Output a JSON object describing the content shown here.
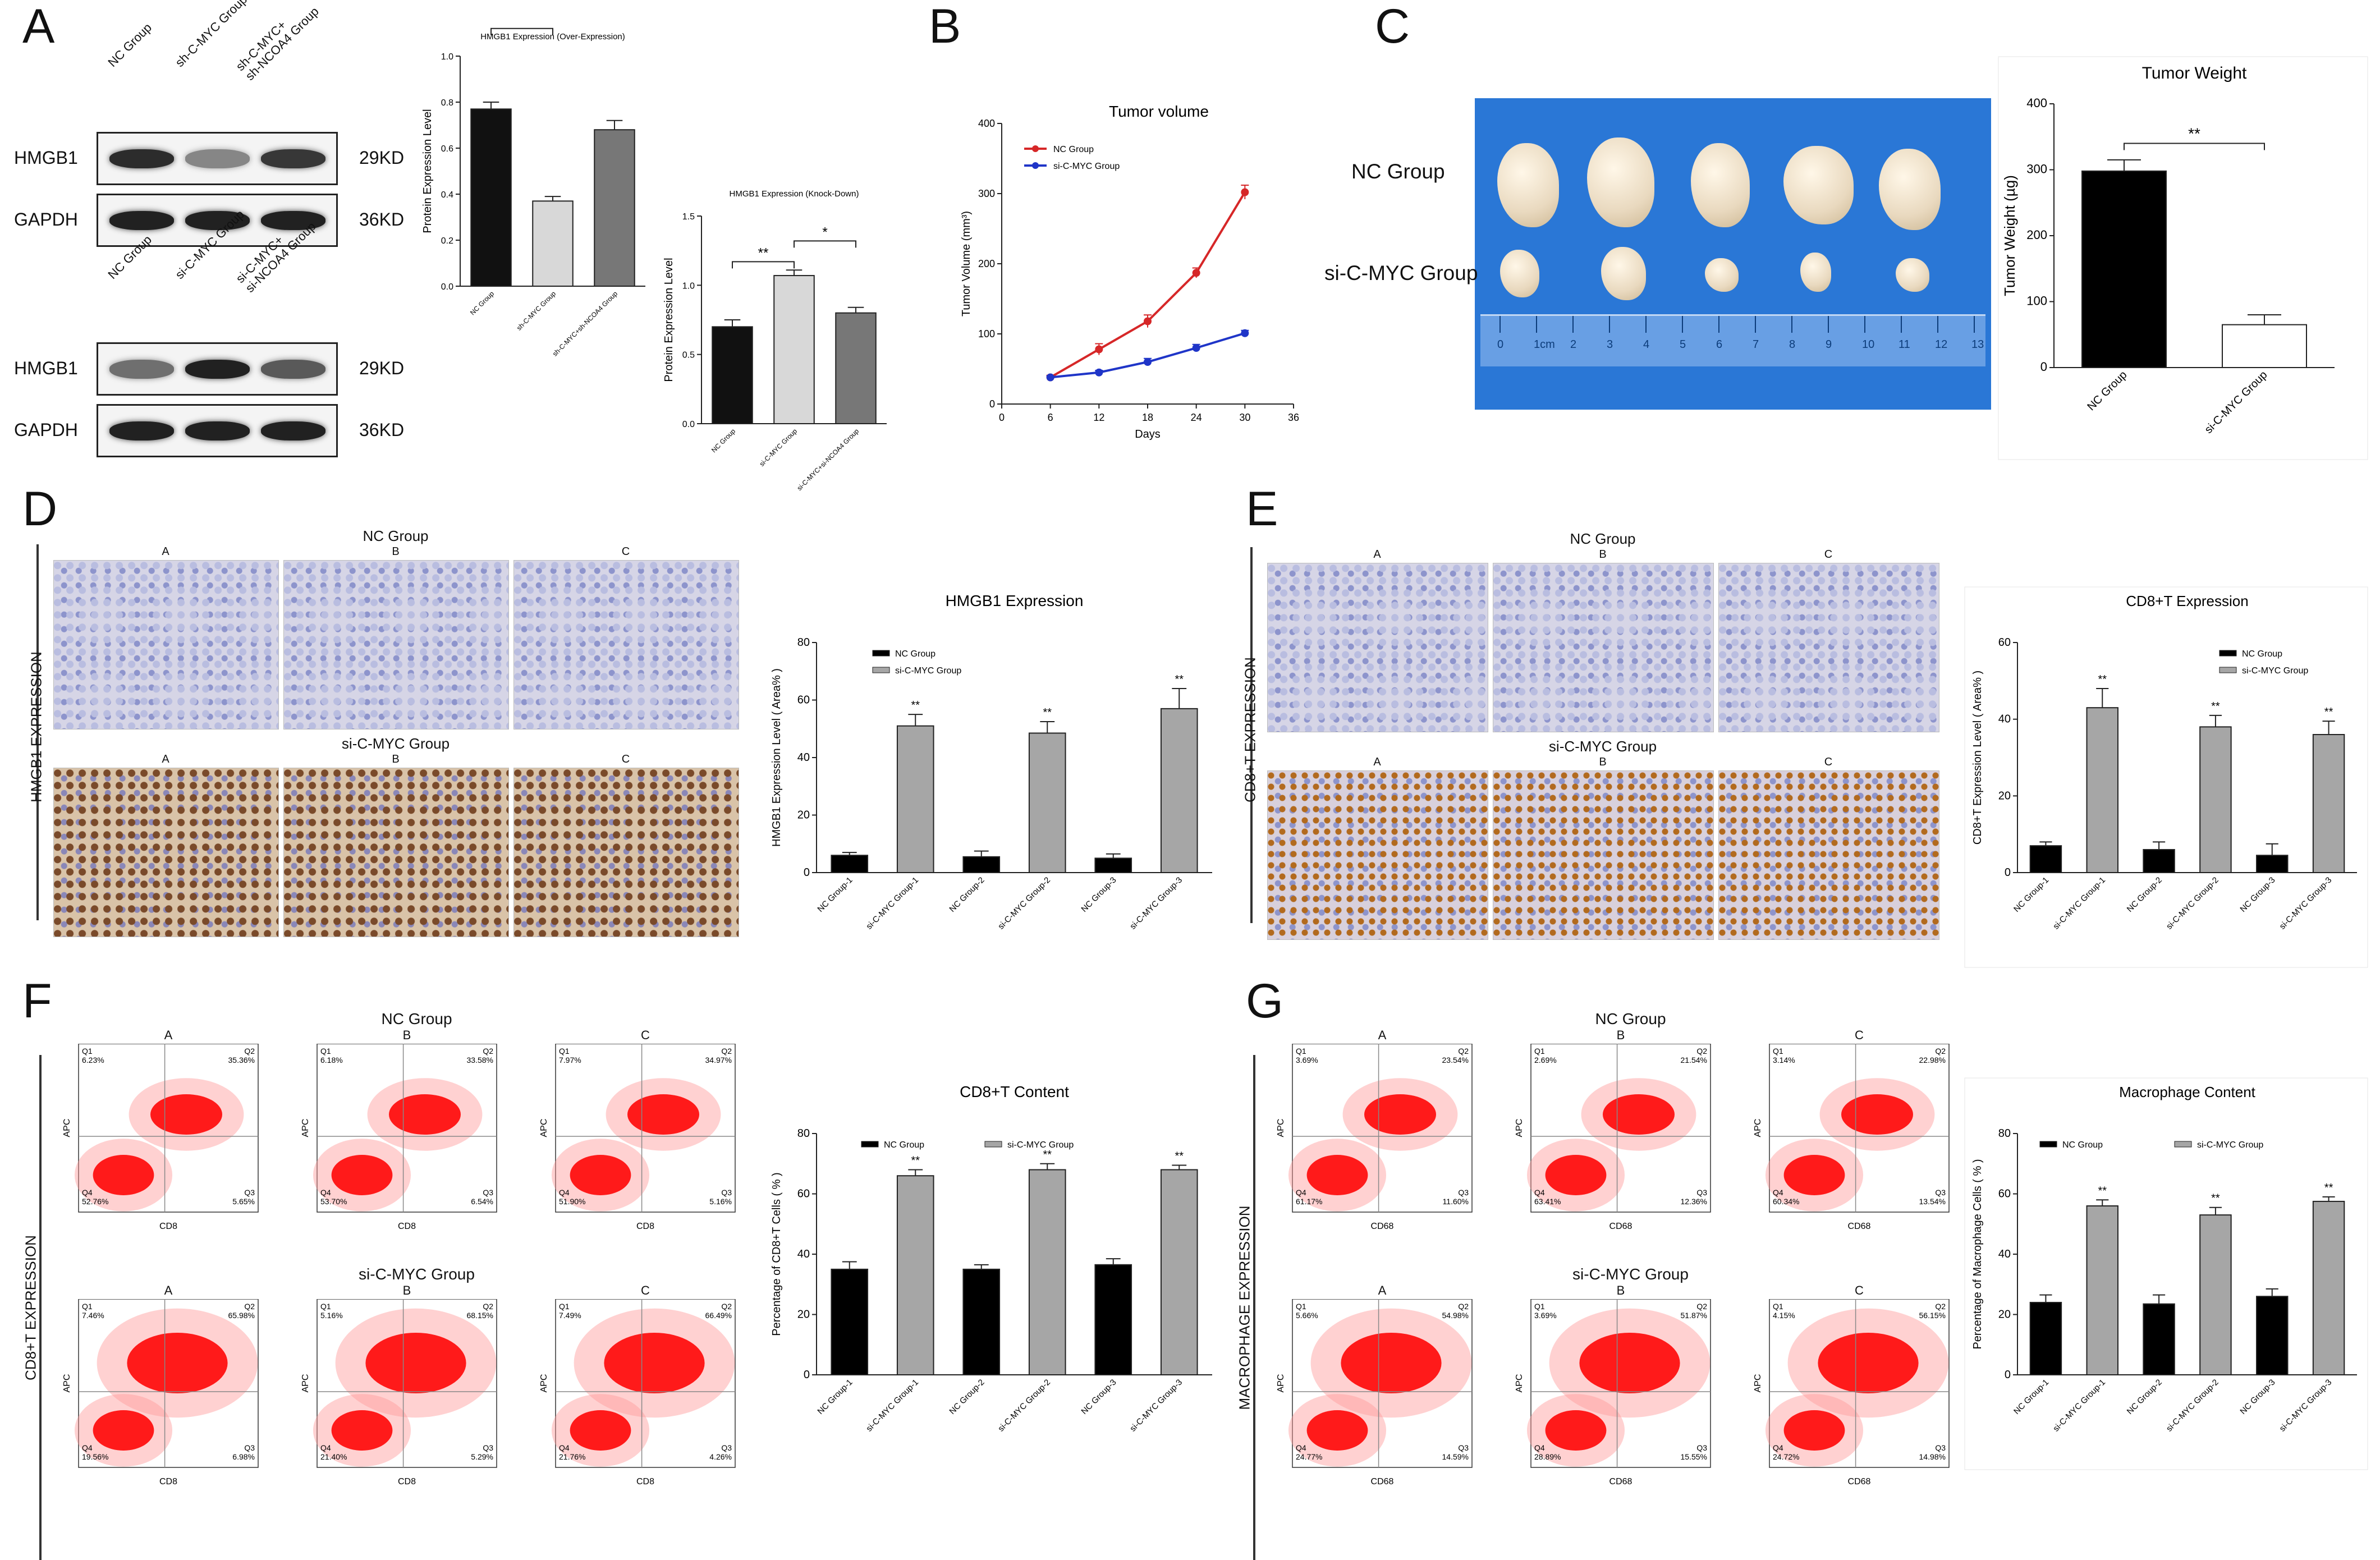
{
  "panels": {
    "A": "A",
    "B": "B",
    "C": "C",
    "D": "D",
    "E": "E",
    "F": "F",
    "G": "G"
  },
  "western_blot": {
    "top": {
      "lanes": [
        "NC Group",
        "sh-C-MYC Group",
        "sh-C-MYC+\nsh-NCOA4 Group"
      ],
      "rows": [
        {
          "protein": "HMGB1",
          "size": "29KD",
          "intensity": [
            0.85,
            0.45,
            0.8
          ]
        },
        {
          "protein": "GAPDH",
          "size": "36KD",
          "intensity": [
            0.9,
            0.9,
            0.9
          ]
        }
      ]
    },
    "bottom": {
      "lanes": [
        "NC Group",
        "si-C-MYC Group",
        "si-C-MYC+\nsi-NCOA4 Group"
      ],
      "rows": [
        {
          "protein": "HMGB1",
          "size": "29KD",
          "intensity": [
            0.55,
            0.9,
            0.65
          ]
        },
        {
          "protein": "GAPDH",
          "size": "36KD",
          "intensity": [
            0.9,
            0.9,
            0.9
          ]
        }
      ]
    }
  },
  "tumor_photo": {
    "row_labels": [
      "NC Group",
      "si-C-MYC Group"
    ],
    "ruler": [
      "0",
      "1cm",
      "2",
      "3",
      "4",
      "5",
      "6",
      "7",
      "8",
      "9",
      "10",
      "11",
      "12",
      "13"
    ]
  },
  "micro_panels": {
    "D": {
      "side_label": "HMGB1 EXPRESSION",
      "top_group": "NC Group",
      "bottom_group": "si-C-MYC Group",
      "columns": [
        "A",
        "B",
        "C"
      ]
    },
    "E": {
      "side_label": "CD8+T EXPRESSION",
      "top_group": "NC Group",
      "bottom_group": "si-C-MYC Group",
      "columns": [
        "A",
        "B",
        "C"
      ]
    }
  },
  "facs_panels": {
    "F": {
      "side_label": "CD8+T EXPRESSION",
      "top_group": "NC Group",
      "bottom_group": "si-C-MYC Group",
      "columns": [
        "A",
        "B",
        "C"
      ],
      "xlabel": "CD8",
      "ylabel": "APC",
      "quadrants": [
        [
          [
            "Q1",
            "6.23%"
          ],
          [
            "Q2",
            "35.36%"
          ],
          [
            "Q4",
            "52.76%"
          ],
          [
            "Q3",
            "5.65%"
          ]
        ],
        [
          [
            "Q1",
            "6.18%"
          ],
          [
            "Q2",
            "33.58%"
          ],
          [
            "Q4",
            "53.70%"
          ],
          [
            "Q3",
            "6.54%"
          ]
        ],
        [
          [
            "Q1",
            "7.97%"
          ],
          [
            "Q2",
            "34.97%"
          ],
          [
            "Q4",
            "51.90%"
          ],
          [
            "Q3",
            "5.16%"
          ]
        ],
        [
          [
            "Q1",
            "7.46%"
          ],
          [
            "Q2",
            "65.98%"
          ],
          [
            "Q4",
            "19.56%"
          ],
          [
            "Q3",
            "6.98%"
          ]
        ],
        [
          [
            "Q1",
            "5.16%"
          ],
          [
            "Q2",
            "68.15%"
          ],
          [
            "Q4",
            "21.40%"
          ],
          [
            "Q3",
            "5.29%"
          ]
        ],
        [
          [
            "Q1",
            "7.49%"
          ],
          [
            "Q2",
            "66.49%"
          ],
          [
            "Q4",
            "21.76%"
          ],
          [
            "Q3",
            "4.26%"
          ]
        ]
      ]
    },
    "G": {
      "side_label": "MACROPHAGE EXPRESSION",
      "top_group": "NC Group",
      "bottom_group": "si-C-MYC Group",
      "columns": [
        "A",
        "B",
        "C"
      ],
      "xlabel": "CD68",
      "ylabel": "APC",
      "quadrants": [
        [
          [
            "Q1",
            "3.69%"
          ],
          [
            "Q2",
            "23.54%"
          ],
          [
            "Q4",
            "61.17%"
          ],
          [
            "Q3",
            "11.60%"
          ]
        ],
        [
          [
            "Q1",
            "2.69%"
          ],
          [
            "Q2",
            "21.54%"
          ],
          [
            "Q4",
            "63.41%"
          ],
          [
            "Q3",
            "12.36%"
          ]
        ],
        [
          [
            "Q1",
            "3.14%"
          ],
          [
            "Q2",
            "22.98%"
          ],
          [
            "Q4",
            "60.34%"
          ],
          [
            "Q3",
            "13.54%"
          ]
        ],
        [
          [
            "Q1",
            "5.66%"
          ],
          [
            "Q2",
            "54.98%"
          ],
          [
            "Q4",
            "24.77%"
          ],
          [
            "Q3",
            "14.59%"
          ]
        ],
        [
          [
            "Q1",
            "3.69%"
          ],
          [
            "Q2",
            "51.87%"
          ],
          [
            "Q4",
            "28.89%"
          ],
          [
            "Q3",
            "15.55%"
          ]
        ],
        [
          [
            "Q1",
            "4.15%"
          ],
          [
            "Q2",
            "56.15%"
          ],
          [
            "Q4",
            "24.72%"
          ],
          [
            "Q3",
            "14.98%"
          ]
        ]
      ]
    }
  },
  "chart_data": [
    {
      "id": "A1",
      "type": "bar",
      "title": "HMGB1 Expression (Over-Expression)",
      "ylabel": "Protein Expression Level",
      "categories": [
        "NC Group",
        "sh-C-MYC Group",
        "sh-C-MYC+sh-NCOA4 Group"
      ],
      "values": [
        0.77,
        0.37,
        0.68
      ],
      "errors": [
        0.03,
        0.02,
        0.04
      ],
      "colors": [
        "#111111",
        "#d8d8d8",
        "#777777"
      ],
      "ylim": [
        0,
        1.0
      ],
      "yticks": [
        "0.0",
        "0.2",
        "0.4",
        "0.6",
        "0.8",
        "1.0"
      ],
      "sig": [
        {
          "from": 0,
          "to": 1,
          "label": "**"
        },
        {
          "from": 1,
          "to": 2,
          "label": "**"
        }
      ]
    },
    {
      "id": "A2",
      "type": "bar",
      "title": "HMGB1 Expression (Knock-Down)",
      "ylabel": "Protein Expression Level",
      "categories": [
        "NC Group",
        "si-C-MYC Group",
        "si-C-MYC+si-NCOA4 Group"
      ],
      "values": [
        0.7,
        1.07,
        0.8
      ],
      "errors": [
        0.05,
        0.04,
        0.04
      ],
      "colors": [
        "#111111",
        "#d8d8d8",
        "#777777"
      ],
      "ylim": [
        0,
        1.5
      ],
      "yticks": [
        "0.0",
        "0.5",
        "1.0",
        "1.5"
      ],
      "sig": [
        {
          "from": 0,
          "to": 1,
          "label": "**"
        },
        {
          "from": 1,
          "to": 2,
          "label": "*"
        }
      ]
    },
    {
      "id": "B",
      "type": "line",
      "title": "Tumor volume",
      "xlabel": "Days",
      "ylabel": "Tumor Volume (mm³)",
      "x": [
        6,
        12,
        18,
        24,
        30
      ],
      "xlim": [
        0,
        36
      ],
      "xticks": [
        "0",
        "6",
        "12",
        "18",
        "24",
        "30",
        "36"
      ],
      "ylim": [
        0,
        400
      ],
      "yticks": [
        "0",
        "100",
        "200",
        "300",
        "400"
      ],
      "series": [
        {
          "name": "NC Group",
          "color": "#d62728",
          "values": [
            38,
            78,
            118,
            187,
            302
          ],
          "errors": [
            3,
            8,
            9,
            7,
            10
          ]
        },
        {
          "name": "si-C-MYC Group",
          "color": "#1f35c8",
          "values": [
            38,
            45,
            60,
            80,
            101
          ],
          "errors": [
            2,
            3,
            5,
            5,
            4
          ]
        }
      ]
    },
    {
      "id": "C",
      "type": "bar",
      "title": "Tumor Weight",
      "ylabel": "Tumor Weight (µg)",
      "categories": [
        "NC Group",
        "si-C-MYC Group"
      ],
      "values": [
        298,
        65
      ],
      "errors": [
        17,
        15
      ],
      "colors": [
        "#000000",
        "#ffffff"
      ],
      "ylim": [
        0,
        400
      ],
      "yticks": [
        "0",
        "100",
        "200",
        "300",
        "400"
      ],
      "sig": [
        {
          "from": 0,
          "to": 1,
          "label": "**"
        }
      ]
    },
    {
      "id": "D",
      "type": "bar",
      "title": "HMGB1 Expression",
      "ylabel": "HMGB1 Expression Level ( Area% )",
      "categories": [
        "NC Group-1",
        "si-C-MYC Group-1",
        "NC Group-2",
        "si-C-MYC Group-2",
        "NC Group-3",
        "si-C-MYC Group-3"
      ],
      "values": [
        6,
        51,
        5.5,
        48.5,
        5,
        57
      ],
      "errors": [
        1,
        4,
        2,
        4,
        1.5,
        7
      ],
      "colors": [
        "#000000",
        "#a6a6a6",
        "#000000",
        "#a6a6a6",
        "#000000",
        "#a6a6a6"
      ],
      "stars": [
        "",
        "**",
        "",
        "**",
        "",
        "**"
      ],
      "ylim": [
        0,
        80
      ],
      "yticks": [
        "0",
        "20",
        "40",
        "60",
        "80"
      ],
      "series": [
        {
          "name": "NC Group",
          "color": "#000000"
        },
        {
          "name": "si-C-MYC Group",
          "color": "#a6a6a6"
        }
      ]
    },
    {
      "id": "E",
      "type": "bar",
      "title": "CD8+T Expression",
      "ylabel": "CD8+T Expression Level ( Area% )",
      "categories": [
        "NC Group-1",
        "si-C-MYC Group-1",
        "NC Group-2",
        "si-C-MYC Group-2",
        "NC Group-3",
        "si-C-MYC Group-3"
      ],
      "values": [
        7,
        43,
        6,
        38,
        4.5,
        36
      ],
      "errors": [
        1,
        5,
        2,
        3,
        3,
        3.5
      ],
      "colors": [
        "#000000",
        "#a6a6a6",
        "#000000",
        "#a6a6a6",
        "#000000",
        "#a6a6a6"
      ],
      "stars": [
        "",
        "**",
        "",
        "**",
        "",
        "**"
      ],
      "ylim": [
        0,
        60
      ],
      "yticks": [
        "0",
        "20",
        "40",
        "60"
      ],
      "series": [
        {
          "name": "NC Group",
          "color": "#000000"
        },
        {
          "name": "si-C-MYC Group",
          "color": "#a6a6a6"
        }
      ]
    },
    {
      "id": "F",
      "type": "bar",
      "title": "CD8+T Content",
      "ylabel": "Percentage of CD8+T Cells ( % )",
      "categories": [
        "NC Group-1",
        "si-C-MYC Group-1",
        "NC Group-2",
        "si-C-MYC Group-2",
        "NC Group-3",
        "si-C-MYC Group-3"
      ],
      "values": [
        35,
        66,
        35,
        68,
        36.5,
        68
      ],
      "errors": [
        2.5,
        2,
        1.5,
        2,
        2,
        1.5
      ],
      "colors": [
        "#000000",
        "#a6a6a6",
        "#000000",
        "#a6a6a6",
        "#000000",
        "#a6a6a6"
      ],
      "stars": [
        "",
        "**",
        "",
        "**",
        "",
        "**"
      ],
      "ylim": [
        0,
        80
      ],
      "yticks": [
        "0",
        "20",
        "40",
        "60",
        "80"
      ],
      "series": [
        {
          "name": "NC Group",
          "color": "#000000"
        },
        {
          "name": "si-C-MYC Group",
          "color": "#a6a6a6"
        }
      ]
    },
    {
      "id": "G",
      "type": "bar",
      "title": "Macrophage Content",
      "ylabel": "Percentage of Macrophage Cells ( % )",
      "categories": [
        "NC Group-1",
        "si-C-MYC Group-1",
        "NC Group-2",
        "si-C-MYC Group-2",
        "NC Group-3",
        "si-C-MYC Group-3"
      ],
      "values": [
        24,
        56,
        23.5,
        53,
        26,
        57.5
      ],
      "errors": [
        2.5,
        2,
        3,
        2.5,
        2.5,
        1.5
      ],
      "colors": [
        "#000000",
        "#a6a6a6",
        "#000000",
        "#a6a6a6",
        "#000000",
        "#a6a6a6"
      ],
      "stars": [
        "",
        "**",
        "",
        "**",
        "",
        "**"
      ],
      "ylim": [
        0,
        80
      ],
      "yticks": [
        "0",
        "20",
        "40",
        "60",
        "80"
      ],
      "series": [
        {
          "name": "NC Group",
          "color": "#000000"
        },
        {
          "name": "si-C-MYC Group",
          "color": "#a6a6a6"
        }
      ]
    }
  ]
}
